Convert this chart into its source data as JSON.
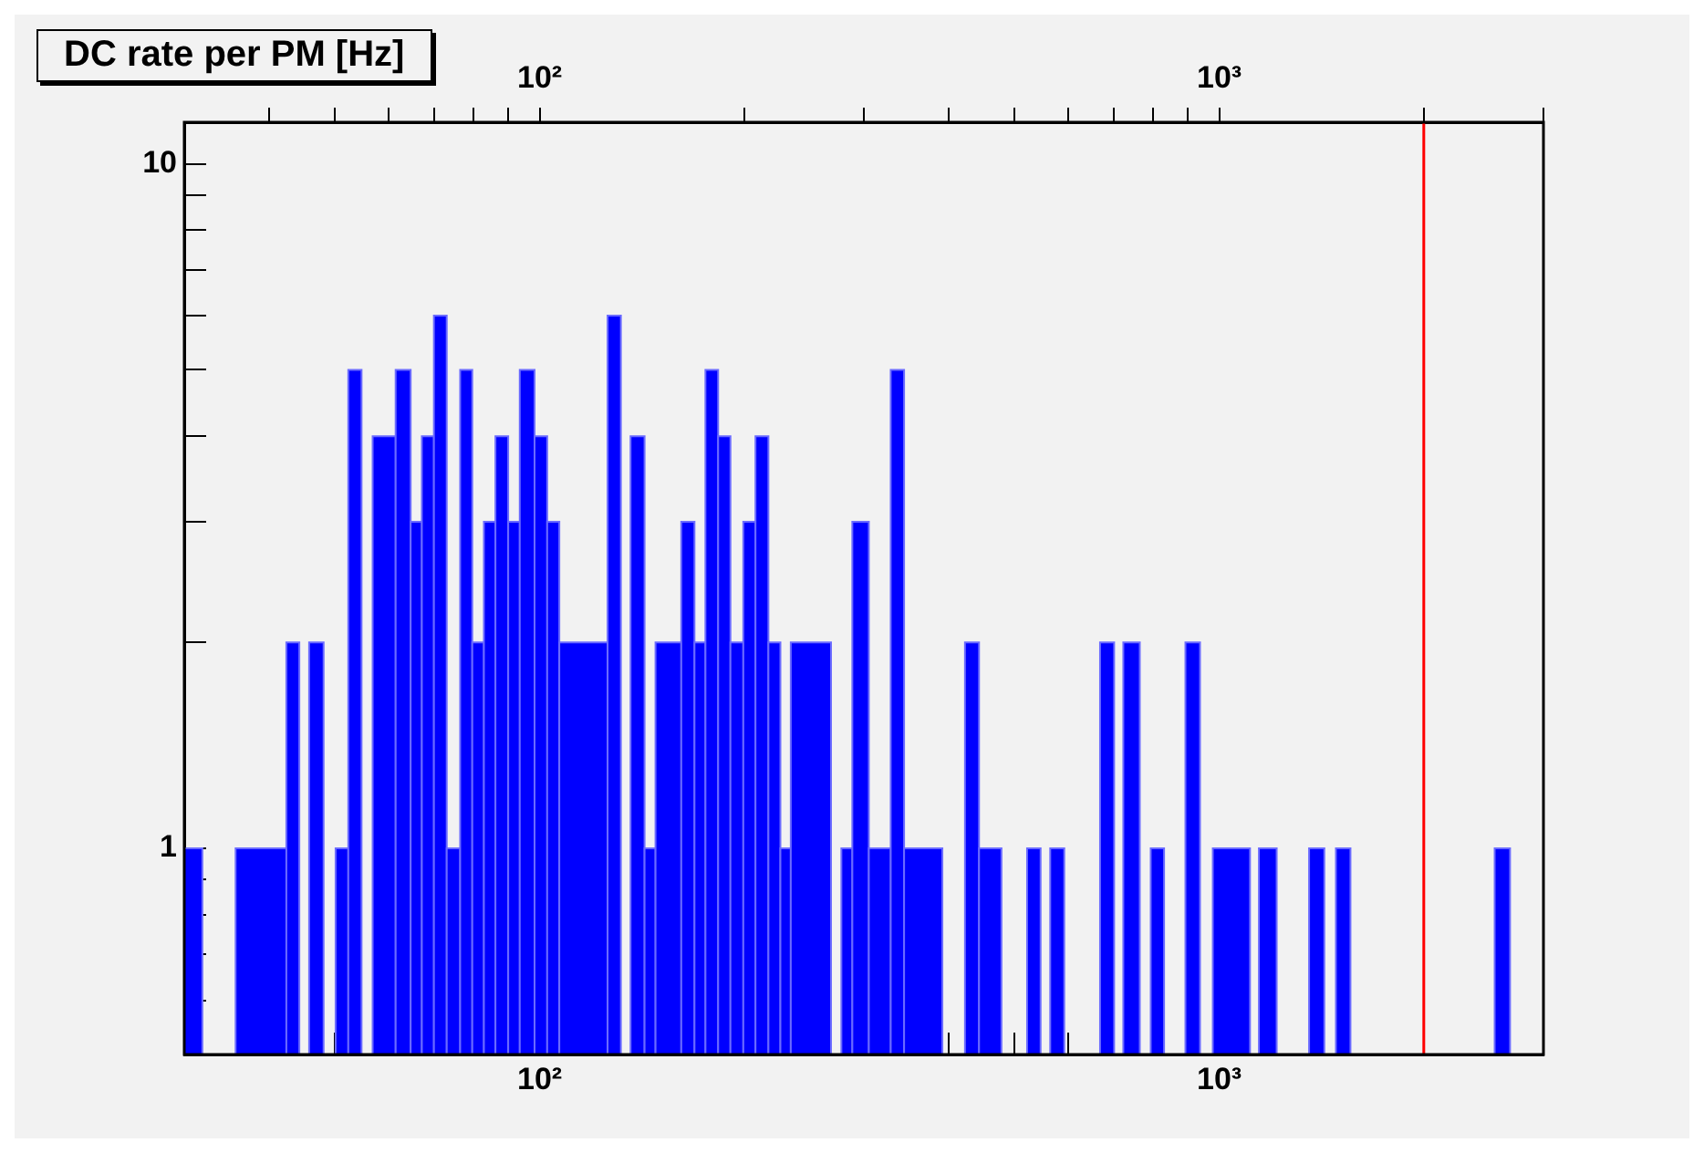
{
  "chart_data": {
    "type": "histogram",
    "title": "DC rate per PM [Hz]",
    "bins": [
      30,
      31.9,
      35.7,
      42.4,
      44.3,
      45.8,
      48.1,
      50.1,
      52.3,
      54.7,
      56.8,
      61.4,
      64.6,
      67.1,
      69.9,
      73.0,
      76.4,
      79.6,
      82.8,
      86.1,
      89.9,
      93.5,
      98.3,
      102.6,
      106.9,
      125.9,
      131.7,
      136.1,
      142.7,
      148.1,
      161.6,
      169.0,
      175.4,
      183.1,
      190.9,
      199.4,
      207.8,
      217.1,
      226.1,
      234.2,
      268.4,
      278.0,
      288.5,
      305.1,
      328.6,
      343.8,
      391.4,
      422.6,
      443.2,
      478.2,
      521.6,
      546.0,
      564.1,
      591.6,
      667.9,
      700.5,
      722.6,
      764.1,
      793.0,
      829.6,
      891.9,
      937.1,
      978.6,
      1110,
      1144,
      1215,
      1356,
      1428,
      1485,
      1560,
      2543,
      2679
    ],
    "values": [
      1,
      null,
      1,
      2,
      null,
      2,
      null,
      1,
      5,
      null,
      4,
      5,
      3,
      4,
      6,
      1,
      5,
      2,
      3,
      4,
      3,
      5,
      4,
      3,
      2,
      6,
      null,
      4,
      1,
      2,
      3,
      2,
      5,
      4,
      2,
      3,
      4,
      2,
      1,
      2,
      null,
      1,
      3,
      1,
      5,
      1,
      null,
      2,
      1,
      null,
      1,
      null,
      1,
      null,
      2,
      null,
      2,
      null,
      1,
      null,
      2,
      null,
      1,
      null,
      1,
      null,
      1,
      null,
      1,
      null,
      1
    ],
    "color": "#0000ff",
    "log": "xy",
    "grid": false,
    "xlim": [
      30,
      3000
    ],
    "xticks": [
      {
        "value": 40,
        "label": null
      },
      {
        "value": 50,
        "label": null
      },
      {
        "value": 60,
        "label": null
      },
      {
        "value": 70,
        "label": null
      },
      {
        "value": 80,
        "label": null
      },
      {
        "value": 90,
        "label": null
      },
      {
        "value": 100,
        "label": "10²"
      },
      {
        "value": 200,
        "label": null
      },
      {
        "value": 300,
        "label": null
      },
      {
        "value": 400,
        "label": null
      },
      {
        "value": 500,
        "label": null
      },
      {
        "value": 600,
        "label": null
      },
      {
        "value": 700,
        "label": null
      },
      {
        "value": 800,
        "label": null
      },
      {
        "value": 900,
        "label": null
      },
      {
        "value": 1000,
        "label": "10³"
      },
      {
        "value": 2000,
        "label": null
      },
      {
        "value": 3000,
        "label": null
      }
    ],
    "ylim": [
      0.5,
      11.5
    ],
    "yticks": [
      {
        "value": 0.6,
        "label": null
      },
      {
        "value": 0.7,
        "label": null
      },
      {
        "value": 0.8,
        "label": null
      },
      {
        "value": 0.9,
        "label": null
      },
      1,
      {
        "value": 2,
        "label": null
      },
      {
        "value": 3,
        "label": null
      },
      {
        "value": 4,
        "label": null
      },
      {
        "value": 5,
        "label": null
      },
      {
        "value": 6,
        "label": null
      },
      {
        "value": 7,
        "label": null
      },
      {
        "value": 8,
        "label": null
      },
      {
        "value": 9,
        "label": null
      },
      10
    ],
    "ref_lines": [
      {
        "axis": "x",
        "value": 2000,
        "color": "#ff0000"
      }
    ]
  }
}
